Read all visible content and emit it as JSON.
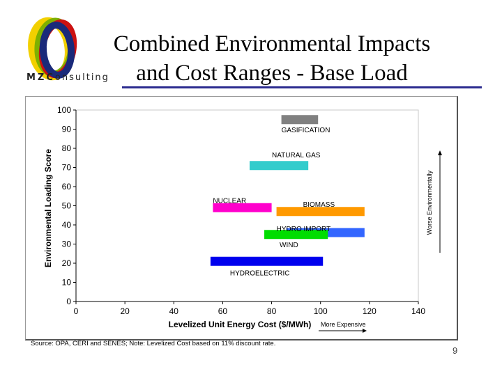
{
  "slide": {
    "title_line1": "Combined Environmental Impacts",
    "title_line2": "and Cost Ranges - Base Load",
    "logo_text_bold": "MZC",
    "logo_text_rest": "onsulting",
    "source": "Source: OPA, CERI and SENES; Note: Levelized Cost based on 11% discount rate.",
    "page_number": "9"
  },
  "colors": {
    "title_rule": "#2b2b8f",
    "gasification": "#808080",
    "natural_gas": "#33cccc",
    "nuclear": "#ff00cc",
    "biomass": "#ff9900",
    "hydro_import": "#3366ff",
    "wind": "#00dd00",
    "hydroelectric": "#0000ee"
  },
  "chart_data": {
    "type": "bar",
    "subtype": "floating-range",
    "xlabel": "Levelized Unit Energy Cost ($/MWh)",
    "ylabel": "Environmental Loading Score",
    "xlim": [
      0,
      140
    ],
    "ylim": [
      0,
      100
    ],
    "x_ticks": [
      "0",
      "20",
      "40",
      "60",
      "80",
      "100",
      "120",
      "140"
    ],
    "y_ticks": [
      "0",
      "10",
      "20",
      "30",
      "40",
      "50",
      "60",
      "70",
      "80",
      "90",
      "100"
    ],
    "grid": false,
    "annotation_x": "More Expensive",
    "annotation_y": "Worse Environmentally",
    "series": [
      {
        "name": "GASIFICATION",
        "x_min": 84,
        "x_max": 99,
        "y": 95,
        "color_key": "gasification"
      },
      {
        "name": "NATURAL GAS",
        "x_min": 71,
        "x_max": 95,
        "y": 71,
        "color_key": "natural_gas"
      },
      {
        "name": "NUCLEAR",
        "x_min": 56,
        "x_max": 80,
        "y": 49,
        "color_key": "nuclear"
      },
      {
        "name": "BIOMASS",
        "x_min": 82,
        "x_max": 118,
        "y": 47,
        "color_key": "biomass"
      },
      {
        "name": "HYDRO IMPORT",
        "x_min": 86,
        "x_max": 118,
        "y": 36,
        "color_key": "hydro_import"
      },
      {
        "name": "WIND",
        "x_min": 77,
        "x_max": 103,
        "y": 35,
        "color_key": "wind"
      },
      {
        "name": "HYDROELECTRIC",
        "x_min": 55,
        "x_max": 101,
        "y": 21,
        "color_key": "hydroelectric"
      }
    ]
  }
}
